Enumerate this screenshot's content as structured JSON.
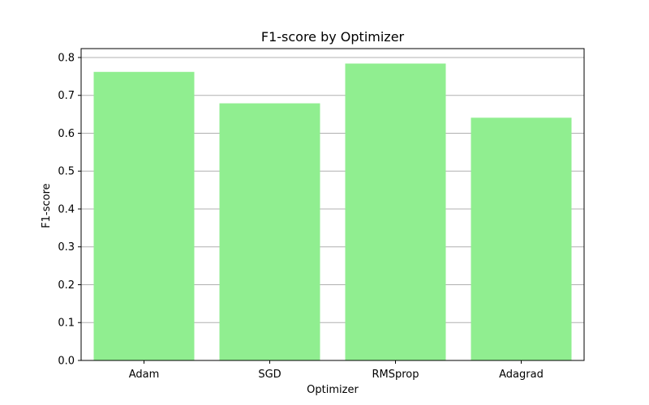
{
  "chart_data": {
    "type": "bar",
    "title": "F1-score by Optimizer",
    "xlabel": "Optimizer",
    "ylabel": "F1-score",
    "categories": [
      "Adam",
      "SGD",
      "RMSprop",
      "Adagrad"
    ],
    "values": [
      0.762,
      0.679,
      0.784,
      0.641
    ],
    "ylim": [
      0,
      0.8
    ],
    "yticks": [
      "0.0",
      "0.1",
      "0.2",
      "0.3",
      "0.4",
      "0.5",
      "0.6",
      "0.7",
      "0.8"
    ],
    "grid": "y",
    "legend": "none",
    "bar_color": "#90ee90",
    "grid_color": "#b0b0b0"
  }
}
